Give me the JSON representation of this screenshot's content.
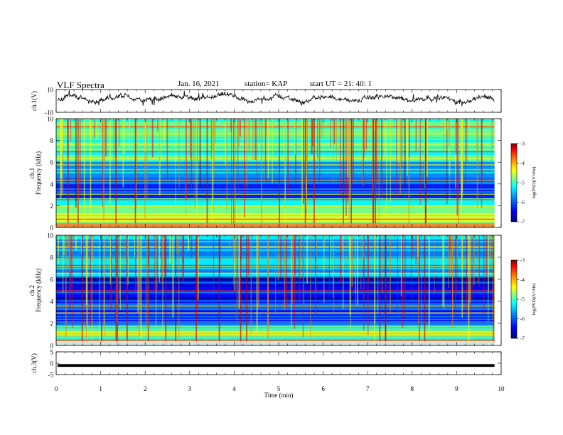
{
  "header": {
    "title": "VLF Spectra",
    "date": "Jan. 16, 2021",
    "station": "station= KAP",
    "start": "start  UT =  21: 40: 1"
  },
  "chart_data": [
    {
      "type": "line",
      "panel": "ch1-waveform",
      "ylabel": "ch.1(V)",
      "ylim": [
        -10,
        10
      ],
      "yticks": [
        "10",
        "-10"
      ],
      "xlim": [
        0,
        10
      ],
      "series": [
        {
          "approx_level": 2,
          "color": "#000000"
        }
      ]
    },
    {
      "type": "heatmap",
      "panel": "ch1-spectrogram",
      "ylabel": [
        "ch.1",
        "Frequency  (kHz)"
      ],
      "ylim": [
        0,
        10
      ],
      "yticks": [
        "0",
        "2",
        "4",
        "6",
        "8",
        "10"
      ],
      "xlim": [
        0,
        10.0
      ],
      "data_end_min": 9.85,
      "colorbar": {
        "label": "log(PSD)(V²/Hz)",
        "range": [
          -7,
          -3
        ],
        "ticks": [
          "-3",
          "-4",
          "-5",
          "-6",
          "-7"
        ]
      }
    },
    {
      "type": "heatmap",
      "panel": "ch2-spectrogram",
      "ylabel": [
        "ch.2",
        "Frequency  (kHz)"
      ],
      "ylim": [
        0,
        10
      ],
      "yticks": [
        "0",
        "2",
        "4",
        "6",
        "8",
        "10"
      ],
      "xlim": [
        0,
        10.0
      ],
      "data_end_min": 9.85,
      "colorbar": {
        "label": "log(PSD)(V²/Hz)",
        "range": [
          -7,
          -3
        ],
        "ticks": [
          "-3",
          "-4",
          "-5",
          "-6",
          "-7"
        ]
      }
    },
    {
      "type": "line",
      "panel": "ch3-waveform",
      "ylabel": "ch.3(V)",
      "ylim": [
        -5,
        5
      ],
      "yticks": [
        "5",
        "0",
        "-5"
      ],
      "xlim": [
        0,
        10
      ],
      "series": [
        {
          "approx_level": -1,
          "color": "#000000",
          "band": true
        }
      ]
    }
  ],
  "xaxis": {
    "label": "Time  (min)",
    "ticks": [
      "0",
      "1",
      "2",
      "3",
      "4",
      "5",
      "6",
      "7",
      "8",
      "9",
      "10"
    ]
  },
  "colormap": [
    "#00007f",
    "#0000ff",
    "#0080ff",
    "#00ffff",
    "#80ff80",
    "#ffff00",
    "#ff8000",
    "#ff0000",
    "#800000"
  ]
}
